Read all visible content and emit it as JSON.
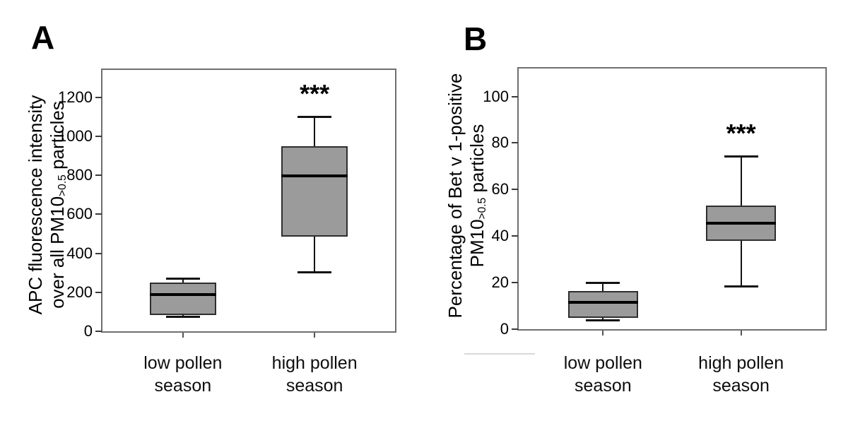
{
  "figure": {
    "background": "#ffffff",
    "colors": {
      "box_fill": "#9b9b9b",
      "box_border": "#2e2e2e",
      "median": "#000000",
      "whisker": "#121212",
      "frame": "#6f6f6f",
      "tick": "#3a3a3a",
      "text": "#000000",
      "artifact": "#d9d9d9"
    }
  },
  "chart_data": [
    {
      "type": "boxplot",
      "panel": "A",
      "ylabel_lines": [
        {
          "pre": "APC fluorescence intensity",
          "sub": "",
          "post": ""
        },
        {
          "pre": "over all PM10",
          "sub": ">0.5",
          "post": " particles"
        }
      ],
      "categories": [
        [
          "low pollen",
          "season"
        ],
        [
          "high pollen",
          "season"
        ]
      ],
      "yticks": [
        0,
        200,
        400,
        600,
        800,
        1000,
        1200
      ],
      "ylim": [
        0,
        1340
      ],
      "grid": false,
      "boxes": [
        {
          "category": "low pollen season",
          "min": 75,
          "q1": 85,
          "median": 190,
          "q3": 250,
          "max": 270,
          "significance": ""
        },
        {
          "category": "high pollen season",
          "min": 305,
          "q1": 485,
          "median": 795,
          "q3": 950,
          "max": 1100,
          "significance": "***"
        }
      ]
    },
    {
      "type": "boxplot",
      "panel": "B",
      "ylabel_lines": [
        {
          "pre": "Percentage of Bet v 1-positive",
          "sub": "",
          "post": ""
        },
        {
          "pre": "PM10",
          "sub": ">0.5",
          "post": " particles"
        }
      ],
      "categories": [
        [
          "low pollen",
          "season"
        ],
        [
          "high pollen",
          "season"
        ]
      ],
      "yticks": [
        0,
        20,
        40,
        60,
        80,
        100
      ],
      "ylim": [
        0,
        112
      ],
      "grid": false,
      "boxes": [
        {
          "category": "low pollen season",
          "min": 4,
          "q1": 5,
          "median": 11.5,
          "q3": 16.5,
          "max": 20,
          "significance": ""
        },
        {
          "category": "high pollen season",
          "min": 18.5,
          "q1": 38,
          "median": 45.5,
          "q3": 53,
          "max": 74.5,
          "significance": "***"
        }
      ]
    }
  ]
}
